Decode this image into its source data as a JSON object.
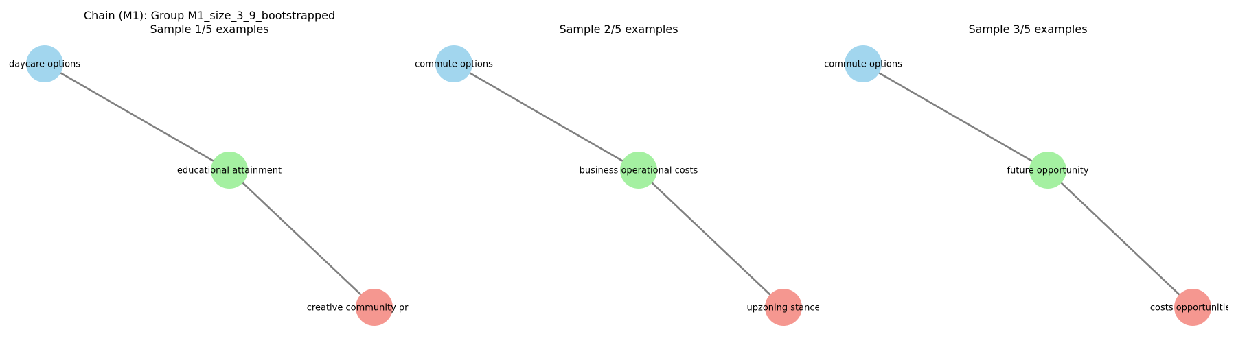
{
  "colors": {
    "blue": "#a2d6ee",
    "green": "#a4f0a1",
    "red": "#f59790",
    "edge": "#808080"
  },
  "panels": [
    {
      "title_lines": [
        "Chain (M1): Group M1_size_3_9_bootstrapped",
        "Sample 1/5 examples"
      ],
      "nodes": [
        {
          "label": "daycare options",
          "color": "blue"
        },
        {
          "label": "educational attainment",
          "color": "green"
        },
        {
          "label": "creative community programs",
          "color": "red"
        }
      ],
      "edges": [
        [
          0,
          1
        ],
        [
          1,
          2
        ]
      ]
    },
    {
      "title_lines": [
        "Sample 2/5 examples"
      ],
      "nodes": [
        {
          "label": "commute options",
          "color": "blue"
        },
        {
          "label": "business operational costs",
          "color": "green"
        },
        {
          "label": "upzoning stance",
          "color": "red"
        }
      ],
      "edges": [
        [
          0,
          1
        ],
        [
          1,
          2
        ]
      ]
    },
    {
      "title_lines": [
        "Sample 3/5 examples"
      ],
      "nodes": [
        {
          "label": "commute options",
          "color": "blue"
        },
        {
          "label": "future opportunity",
          "color": "green"
        },
        {
          "label": "costs opportunities",
          "color": "red"
        }
      ],
      "edges": [
        [
          0,
          1
        ],
        [
          1,
          2
        ]
      ]
    }
  ]
}
